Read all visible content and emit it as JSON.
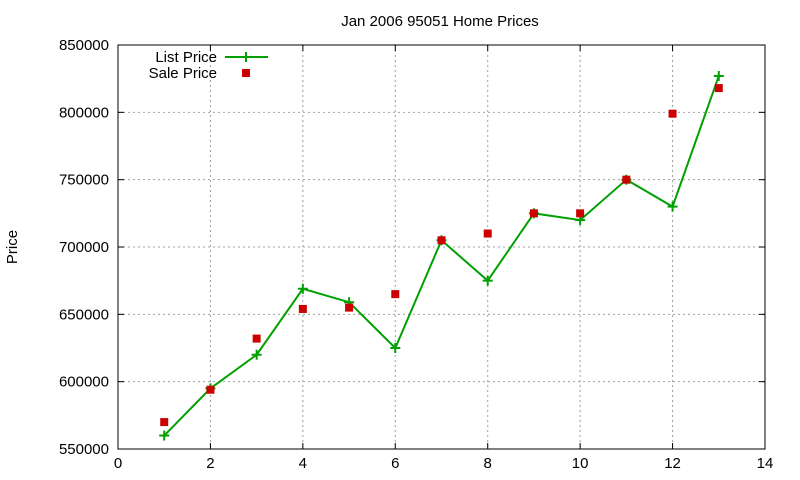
{
  "chart_data": {
    "type": "line",
    "title": "Jan 2006 95051 Home Prices",
    "xlabel": "",
    "ylabel": "Price",
    "xlim": [
      0,
      14
    ],
    "ylim": [
      550000,
      850000
    ],
    "x_ticks": [
      0,
      2,
      4,
      6,
      8,
      10,
      12,
      14
    ],
    "y_ticks": [
      550000,
      600000,
      650000,
      700000,
      750000,
      800000,
      850000
    ],
    "grid": true,
    "legend_position": "top-left",
    "series": [
      {
        "name": "List Price",
        "style": "line-with-plus-markers",
        "color": "#00a000",
        "x": [
          1,
          2,
          3,
          4,
          5,
          6,
          7,
          8,
          9,
          10,
          11,
          12,
          13
        ],
        "y": [
          560000,
          595000,
          620000,
          669000,
          659000,
          625000,
          705000,
          675000,
          725000,
          720000,
          750000,
          730000,
          827000
        ]
      },
      {
        "name": "Sale Price",
        "style": "square-markers",
        "color": "#cc0000",
        "x": [
          1,
          2,
          3,
          4,
          5,
          6,
          7,
          8,
          9,
          10,
          11,
          12,
          13
        ],
        "y": [
          570000,
          594000,
          632000,
          654000,
          655000,
          665000,
          705000,
          710000,
          725000,
          725000,
          750000,
          799000,
          818000
        ]
      }
    ]
  }
}
